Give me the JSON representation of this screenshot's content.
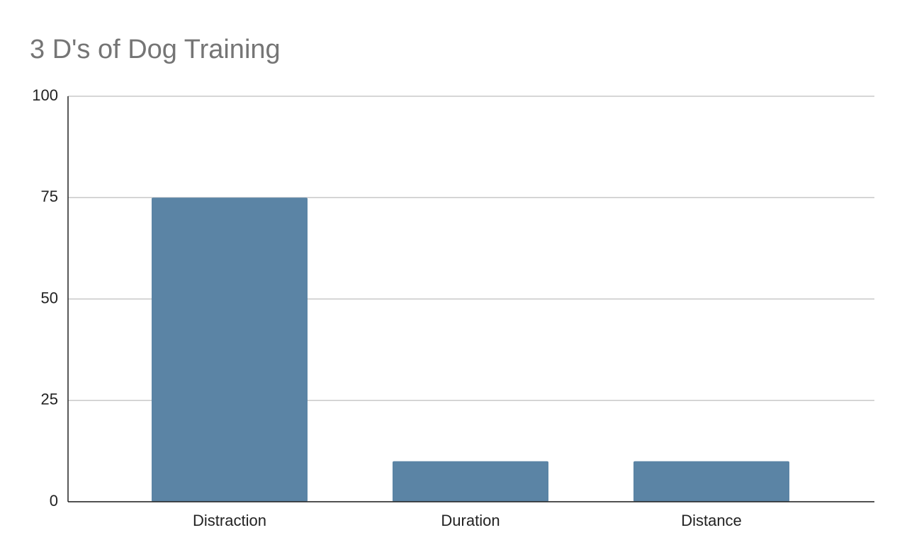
{
  "chart_data": {
    "type": "bar",
    "title": "3 D's of Dog Training",
    "categories": [
      "Distraction",
      "Duration",
      "Distance"
    ],
    "values": [
      75,
      10,
      10
    ],
    "color": "#5b84a5",
    "ylim": [
      0,
      100
    ],
    "yticks": [
      0,
      25,
      50,
      75,
      100
    ],
    "grid": true
  }
}
